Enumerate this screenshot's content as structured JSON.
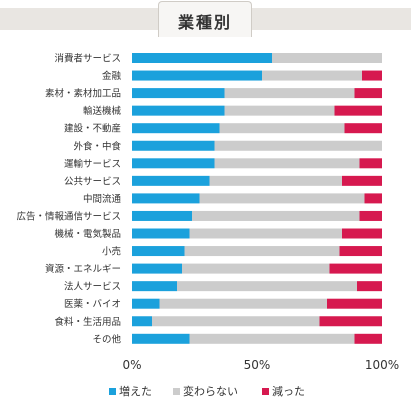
{
  "header": {
    "title": "業種別"
  },
  "chart_data": {
    "type": "bar",
    "orientation": "horizontal",
    "stacked": true,
    "percent": true,
    "categories": [
      "消費者サービス",
      "金融",
      "素材・素材加工品",
      "輸送機械",
      "建設・不動産",
      "外食・中食",
      "運輸サービス",
      "公共サービス",
      "中間流通",
      "広告・情報通信サービス",
      "機械・電気製品",
      "小売",
      "資源・エネルギー",
      "法人サービス",
      "医薬・バイオ",
      "食料・生活用品",
      "その他"
    ],
    "series": [
      {
        "name": "増えた",
        "color": "#1ba1dc",
        "values": [
          56,
          52,
          37,
          37,
          35,
          33,
          33,
          31,
          27,
          24,
          23,
          21,
          20,
          18,
          11,
          8,
          23
        ]
      },
      {
        "name": "変わらない",
        "color": "#cccccc",
        "values": [
          44,
          40,
          52,
          44,
          50,
          67,
          58,
          53,
          66,
          67,
          61,
          62,
          59,
          72,
          67,
          67,
          66
        ]
      },
      {
        "name": "減った",
        "color": "#d6194f",
        "values": [
          0,
          8,
          11,
          19,
          15,
          0,
          9,
          16,
          7,
          9,
          16,
          17,
          21,
          10,
          22,
          25,
          11
        ]
      }
    ],
    "xticks": [
      "0%",
      "50%",
      "100%"
    ],
    "xlim": [
      0,
      100
    ],
    "legend": "bottom-center",
    "grid": false
  }
}
